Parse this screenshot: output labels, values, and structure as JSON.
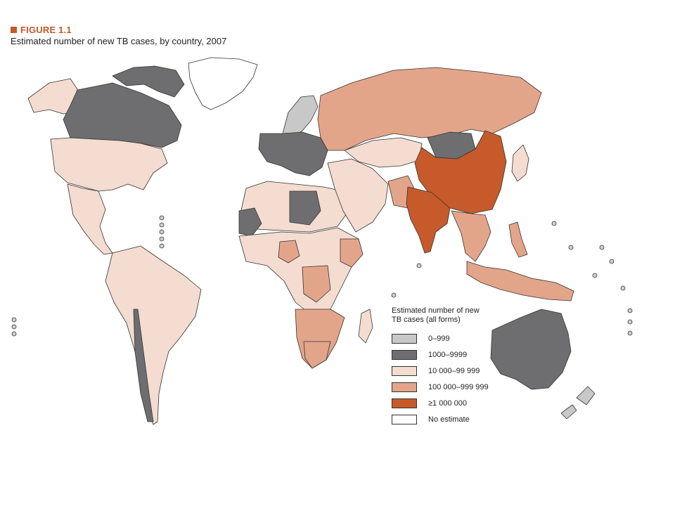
{
  "header": {
    "figure_label": "FIGURE 1.1",
    "title": "Estimated number of new TB cases, by country, 2007"
  },
  "legend": {
    "title": "Estimated number of new TB cases (all forms)",
    "items": [
      {
        "label": "0–999",
        "color": "#c8c8c8"
      },
      {
        "label": "1000–9999",
        "color": "#6e6e70"
      },
      {
        "label": "10 000–99 999",
        "color": "#f4dcd0"
      },
      {
        "label": "100 000–999 999",
        "color": "#e3a58a"
      },
      {
        "label": "≥1 000 000",
        "color": "#c65a2a"
      },
      {
        "label": "No estimate",
        "color": "#ffffff"
      }
    ]
  },
  "map_regions": [
    {
      "name": "greenland",
      "category": 5
    },
    {
      "name": "canada",
      "category": 1
    },
    {
      "name": "alaska",
      "category": 2
    },
    {
      "name": "arctic-islands",
      "category": 1
    },
    {
      "name": "usa",
      "category": 2
    },
    {
      "name": "mexico-central-america",
      "category": 2
    },
    {
      "name": "south-america",
      "category": 2
    },
    {
      "name": "chile",
      "category": 1
    },
    {
      "name": "north-africa",
      "category": 2
    },
    {
      "name": "central-africa",
      "category": 2
    },
    {
      "name": "southern-africa",
      "category": 3
    },
    {
      "name": "madagascar",
      "category": 2
    },
    {
      "name": "europe",
      "category": 1
    },
    {
      "name": "scandinavia",
      "category": 0
    },
    {
      "name": "russia",
      "category": 3
    },
    {
      "name": "middle-east",
      "category": 2
    },
    {
      "name": "central-asia",
      "category": 2
    },
    {
      "name": "mongolia",
      "category": 1
    },
    {
      "name": "china",
      "category": 4
    },
    {
      "name": "india",
      "category": 4
    },
    {
      "name": "pakistan",
      "category": 3
    },
    {
      "name": "southeast-asia",
      "category": 3
    },
    {
      "name": "indonesia",
      "category": 3
    },
    {
      "name": "philippines",
      "category": 3
    },
    {
      "name": "japan",
      "category": 2
    },
    {
      "name": "australia",
      "category": 1
    },
    {
      "name": "new-zealand",
      "category": 0
    },
    {
      "name": "libya",
      "category": 1
    },
    {
      "name": "west-africa-desert",
      "category": 1
    },
    {
      "name": "nigeria",
      "category": 3
    },
    {
      "name": "ethiopia",
      "category": 3
    },
    {
      "name": "dr-congo",
      "category": 3
    },
    {
      "name": "south-africa",
      "category": 3
    }
  ]
}
